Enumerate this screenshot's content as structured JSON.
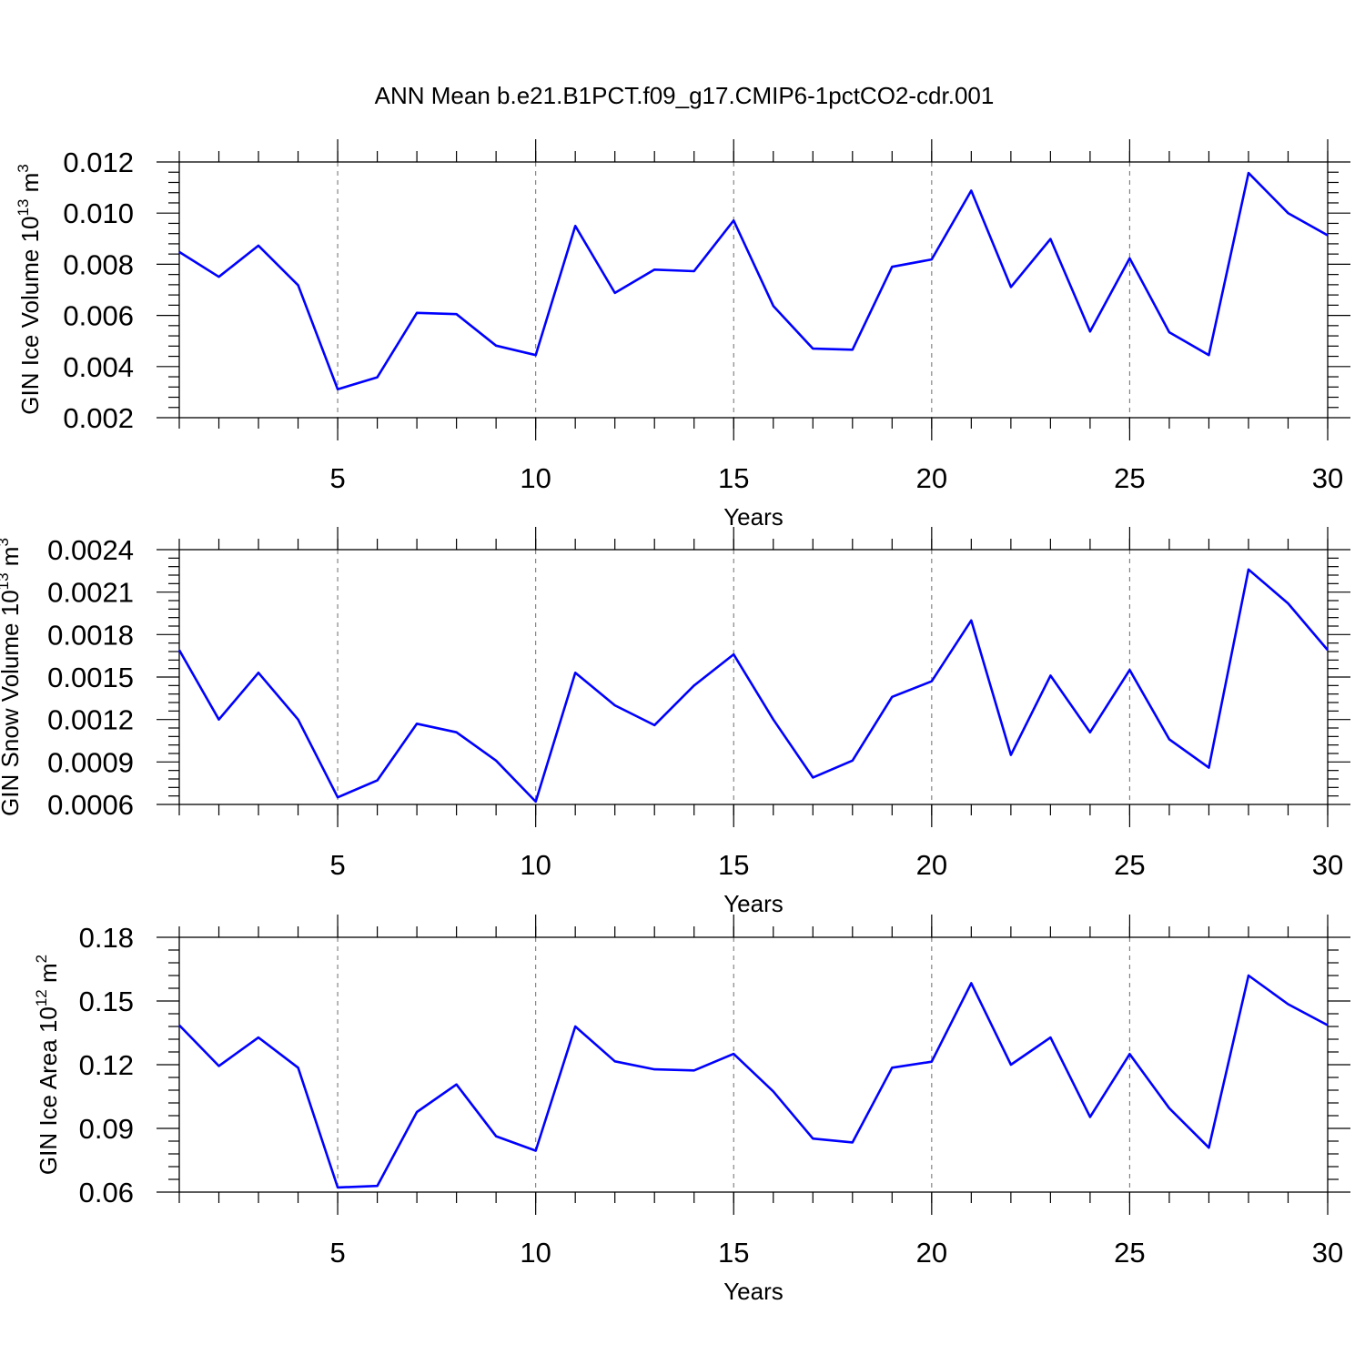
{
  "title": "ANN Mean b.e21.B1PCT.f09_g17.CMIP6-1pctCO2-cdr.001",
  "colors": {
    "line": "#0000ff",
    "axis": "#000000",
    "grid": "#7a7a7a"
  },
  "chart_data": [
    {
      "type": "line",
      "ylabel": {
        "text": "GIN Ice Volume 10",
        "sup": "13",
        "unit": " m",
        "unit_sup": "3"
      },
      "xlabel": "Years",
      "xlim": [
        1,
        30
      ],
      "ylim": [
        0.002,
        0.012
      ],
      "yticks": [
        "0.002",
        "0.004",
        "0.006",
        "0.008",
        "0.010",
        "0.012"
      ],
      "xticks": [
        "5",
        "10",
        "15",
        "20",
        "25",
        "30"
      ],
      "grid": "dashed vertical at major x ticks",
      "x": [
        1,
        2,
        3,
        4,
        5,
        6,
        7,
        8,
        9,
        10,
        11,
        12,
        13,
        14,
        15,
        16,
        17,
        18,
        19,
        20,
        21,
        22,
        23,
        24,
        25,
        26,
        27,
        28,
        29,
        30
      ],
      "y": [
        0.00848,
        0.00751,
        0.00873,
        0.00718,
        0.00311,
        0.00358,
        0.0061,
        0.00605,
        0.00482,
        0.00445,
        0.0095,
        0.00688,
        0.00779,
        0.00773,
        0.00971,
        0.00637,
        0.0047,
        0.00466,
        0.0079,
        0.00819,
        0.01088,
        0.00711,
        0.00899,
        0.00537,
        0.00823,
        0.00534,
        0.00445,
        0.01157,
        0.01,
        0.00913
      ]
    },
    {
      "type": "line",
      "ylabel": {
        "text": "GIN Snow Volume 10",
        "sup": "13",
        "unit": " m",
        "unit_sup": "3"
      },
      "xlabel": "Years",
      "xlim": [
        1,
        30
      ],
      "ylim": [
        0.0006,
        0.0024
      ],
      "yticks": [
        "0.0006",
        "0.0009",
        "0.0012",
        "0.0015",
        "0.0018",
        "0.0021",
        "0.0024"
      ],
      "xticks": [
        "5",
        "10",
        "15",
        "20",
        "25",
        "30"
      ],
      "grid": "dashed vertical at major x ticks",
      "x": [
        1,
        2,
        3,
        4,
        5,
        6,
        7,
        8,
        9,
        10,
        11,
        12,
        13,
        14,
        15,
        16,
        17,
        18,
        19,
        20,
        21,
        22,
        23,
        24,
        25,
        26,
        27,
        28,
        29,
        30
      ],
      "y": [
        0.00169,
        0.0012,
        0.00153,
        0.0012,
        0.00065,
        0.00077,
        0.00117,
        0.00111,
        0.00091,
        0.00062,
        0.00153,
        0.0013,
        0.00116,
        0.00144,
        0.00166,
        0.0012,
        0.00079,
        0.00091,
        0.00136,
        0.00147,
        0.0019,
        0.00095,
        0.00151,
        0.00111,
        0.00155,
        0.00106,
        0.00086,
        0.00226,
        0.00202,
        0.00169
      ]
    },
    {
      "type": "line",
      "ylabel": {
        "text": "GIN Ice Area 10",
        "sup": "12",
        "unit": " m",
        "unit_sup": "2"
      },
      "xlabel": "Years",
      "xlim": [
        1,
        30
      ],
      "ylim": [
        0.06,
        0.18
      ],
      "yticks": [
        "0.06",
        "0.09",
        "0.12",
        "0.15",
        "0.18"
      ],
      "xticks": [
        "5",
        "10",
        "15",
        "20",
        "25",
        "30"
      ],
      "grid": "dashed vertical at major x ticks",
      "x": [
        1,
        2,
        3,
        4,
        5,
        6,
        7,
        8,
        9,
        10,
        11,
        12,
        13,
        14,
        15,
        16,
        17,
        18,
        19,
        20,
        21,
        22,
        23,
        24,
        25,
        26,
        27,
        28,
        29,
        30
      ],
      "y": [
        0.1386,
        0.1194,
        0.1328,
        0.1186,
        0.0622,
        0.0629,
        0.0977,
        0.1107,
        0.0863,
        0.0795,
        0.138,
        0.1216,
        0.1178,
        0.1173,
        0.1251,
        0.1074,
        0.0852,
        0.0834,
        0.1186,
        0.1214,
        0.1584,
        0.12,
        0.1328,
        0.0954,
        0.125,
        0.0995,
        0.0809,
        0.162,
        0.1485,
        0.1386
      ]
    }
  ]
}
